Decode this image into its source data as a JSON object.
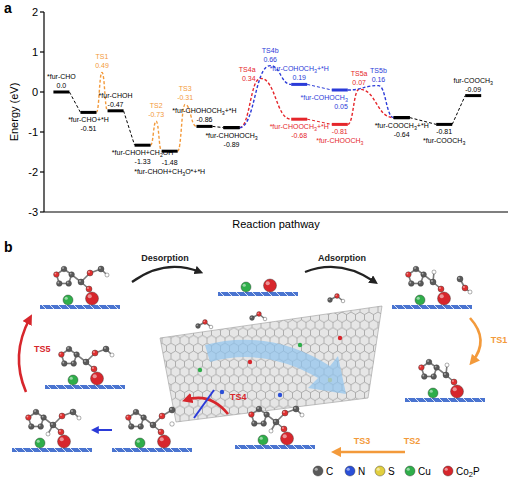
{
  "chart_data": {
    "type": "energy_profile",
    "panel_label": "a",
    "x_label": "Reaction pathway",
    "y_label": "Energy (eV)",
    "xlim": [
      0,
      24
    ],
    "ylim": [
      -3,
      2
    ],
    "yticks": [
      -3,
      -2,
      -1,
      0,
      1,
      2
    ],
    "grid": false,
    "tick_labels": "y",
    "series": [
      {
        "x": [
          0.9,
          2.3,
          3.0,
          3.7,
          5.1,
          5.8,
          6.5,
          7.3,
          8.3,
          9.7
        ],
        "values": [
          0.0,
          -0.51,
          0.49,
          -0.47,
          -1.33,
          -0.73,
          -1.48,
          -0.31,
          -0.86,
          -0.89
        ],
        "labels": [
          "*fur-CHO",
          "*fur-CHO+*H",
          "TS1",
          "*fur-CHOH",
          "*fur-CHOH+CH2OH",
          "TS2",
          "*fur-CHOH+CH3O*+*H",
          "TS3",
          "*fur-CHOHOCH3+*H",
          "*fur-CHOHOCH3"
        ],
        "value_labels": [
          "0.0",
          "-0.51",
          "0.49",
          "-0.47",
          "-1.33",
          "-0.73",
          "-1.48",
          "-0.31",
          "-0.86",
          "-0.89"
        ],
        "markers": [
          "level",
          "level",
          "peak",
          "level",
          "level",
          "peak",
          "level",
          "peak",
          "level",
          "level"
        ],
        "colors": [
          "#000000",
          "#000000",
          "#f39a3b",
          "#000000",
          "#000000",
          "#f39a3b",
          "#000000",
          "#f39a3b",
          "#000000",
          "#000000"
        ]
      },
      {
        "x": [
          9.7,
          11.2,
          13.2,
          15.3,
          16.3,
          18.5
        ],
        "values": [
          -0.89,
          0.34,
          -0.68,
          -0.81,
          0.07,
          -0.64
        ],
        "labels": [
          null,
          "TS4a",
          "*fur-CHOOCH3+*H",
          "*fur-CHOOCH3",
          "TS5a",
          null
        ],
        "value_labels": [
          null,
          "0.34",
          "-0.68",
          "-0.81",
          "0.07",
          null
        ],
        "markers": [
          "level",
          "peak",
          "level",
          "level",
          "peak",
          "level"
        ],
        "colors": [
          "#000000",
          "#e5262b",
          "#e5262b",
          "#e5262b",
          "#e5262b",
          "#000000"
        ]
      },
      {
        "x": [
          9.7,
          11.7,
          13.2,
          15.3,
          17.3,
          18.5
        ],
        "values": [
          -0.89,
          0.66,
          0.19,
          0.05,
          0.16,
          -0.64
        ],
        "labels": [
          null,
          "TS4b",
          "*fur-COHOCH3+*H",
          "*fur-COHOCH3",
          "TS5b",
          null
        ],
        "value_labels": [
          null,
          "0.66",
          "0.19",
          "0.05",
          "0.16",
          null
        ],
        "markers": [
          "level",
          "peak",
          "level",
          "level",
          "peak",
          "level"
        ],
        "colors": [
          "#000000",
          "#2b3bd8",
          "#2b3bd8",
          "#2b3bd8",
          "#2b3bd8",
          "#000000"
        ]
      },
      {
        "x": [
          18.5,
          20.7,
          22.2
        ],
        "values": [
          -0.64,
          -0.81,
          -0.09
        ],
        "labels": [
          "*fur-COOCH3+*H",
          "*fur-COOCH3",
          "fur-COOCH3"
        ],
        "value_labels": [
          "-0.64",
          "-0.81",
          "-0.09"
        ],
        "markers": [
          "level",
          "level",
          "level"
        ],
        "colors": [
          "#000000",
          "#000000",
          "#000000"
        ]
      }
    ]
  },
  "diagram": {
    "panel_label": "b",
    "steps": [
      {
        "label": "Desorption"
      },
      {
        "label": "Adsorption"
      },
      {
        "label": "TS1"
      },
      {
        "label": "TS2"
      },
      {
        "label": "TS3"
      },
      {
        "label": "TS4"
      },
      {
        "label": "TS5"
      }
    ],
    "legend": [
      {
        "label": "C",
        "color": "#5a5a5a"
      },
      {
        "label": "N",
        "color": "#2a4fd8"
      },
      {
        "label": "S",
        "color": "#e2cf3f"
      },
      {
        "label": "Cu",
        "color": "#2fae4a"
      },
      {
        "label": "Co2P",
        "color": "#d7262c"
      }
    ]
  }
}
